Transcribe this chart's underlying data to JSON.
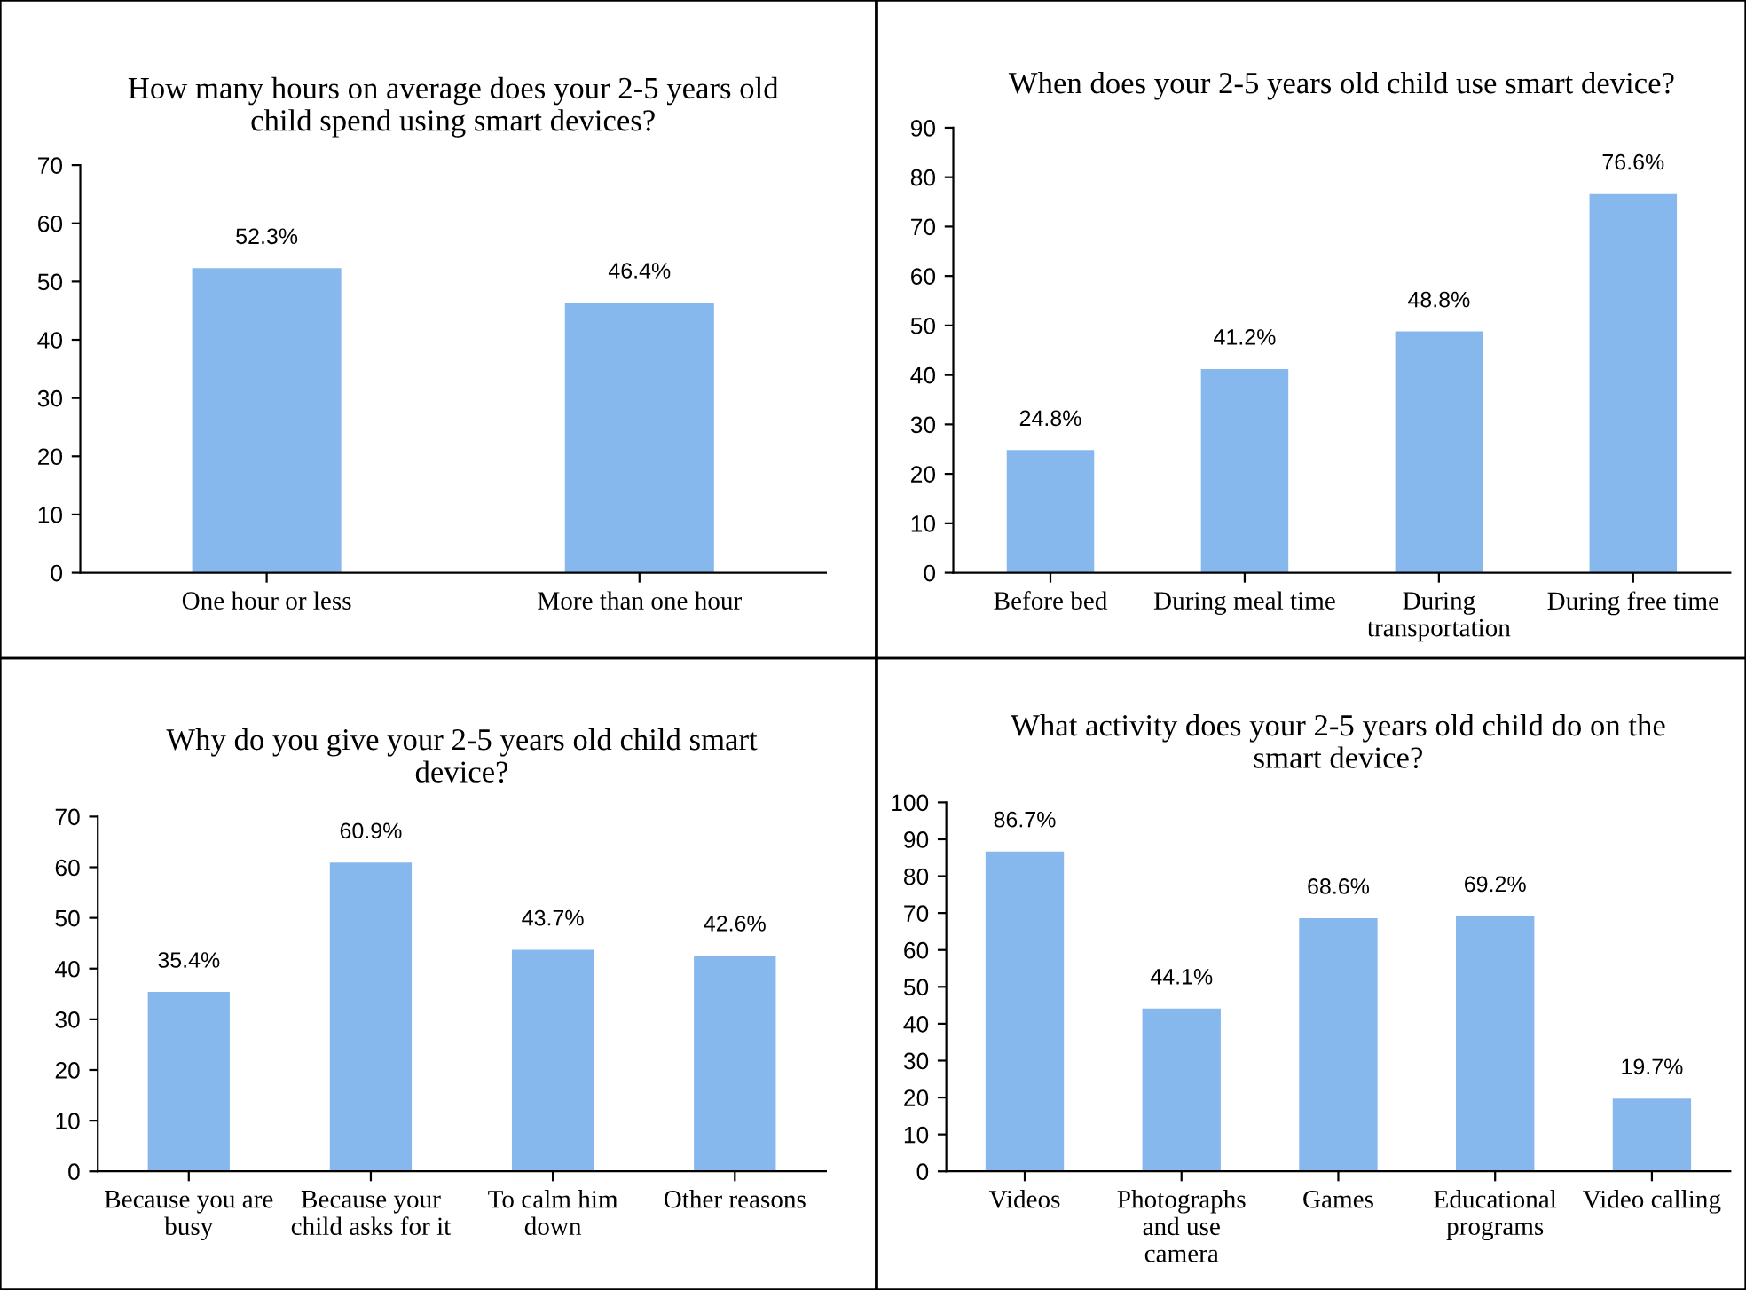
{
  "chart_data": [
    {
      "type": "bar",
      "title": "How many hours on average does your 2-5 years old\nchild spend using smart devices?",
      "categories": [
        "One hour or less",
        "More than one hour"
      ],
      "values": [
        52.3,
        46.4
      ],
      "value_labels": [
        "52.3%",
        "46.4%"
      ],
      "color": "#86b8ee",
      "ylim": [
        0,
        70
      ],
      "yticks": [
        0,
        10,
        20,
        30,
        40,
        50,
        60,
        70
      ],
      "grid": false,
      "legend": false
    },
    {
      "type": "bar",
      "title": "When does your 2-5 years old child use smart device?",
      "categories": [
        "Before bed",
        "During meal time",
        "During\ntransportation",
        "During free time"
      ],
      "values": [
        24.8,
        41.2,
        48.8,
        76.6
      ],
      "value_labels": [
        "24.8%",
        "41.2%",
        "48.8%",
        "76.6%"
      ],
      "color": "#86b8ee",
      "ylim": [
        0,
        90
      ],
      "yticks": [
        0,
        10,
        20,
        30,
        40,
        50,
        60,
        70,
        80,
        90
      ],
      "grid": false,
      "legend": false
    },
    {
      "type": "bar",
      "title": "Why do you give your 2-5 years old child smart\ndevice?",
      "categories": [
        "Because you are\nbusy",
        "Because your\nchild asks for it",
        "To calm him\ndown",
        "Other reasons"
      ],
      "values": [
        35.4,
        60.9,
        43.7,
        42.6
      ],
      "value_labels": [
        "35.4%",
        "60.9%",
        "43.7%",
        "42.6%"
      ],
      "color": "#86b8ee",
      "ylim": [
        0,
        70
      ],
      "yticks": [
        0,
        10,
        20,
        30,
        40,
        50,
        60,
        70
      ],
      "grid": false,
      "legend": false
    },
    {
      "type": "bar",
      "title": "What activity does your 2-5 years old child do on the\nsmart device?",
      "categories": [
        "Videos",
        "Photographs\nand use\ncamera",
        "Games",
        "Educational\nprograms",
        "Video calling"
      ],
      "values": [
        86.7,
        44.1,
        68.6,
        69.2,
        19.7
      ],
      "value_labels": [
        "86.7%",
        "44.1%",
        "68.6%",
        "69.2%",
        "19.7%"
      ],
      "color": "#86b8ee",
      "ylim": [
        0,
        100
      ],
      "yticks": [
        0,
        10,
        20,
        30,
        40,
        50,
        60,
        70,
        80,
        90,
        100
      ],
      "grid": false,
      "legend": false
    }
  ]
}
